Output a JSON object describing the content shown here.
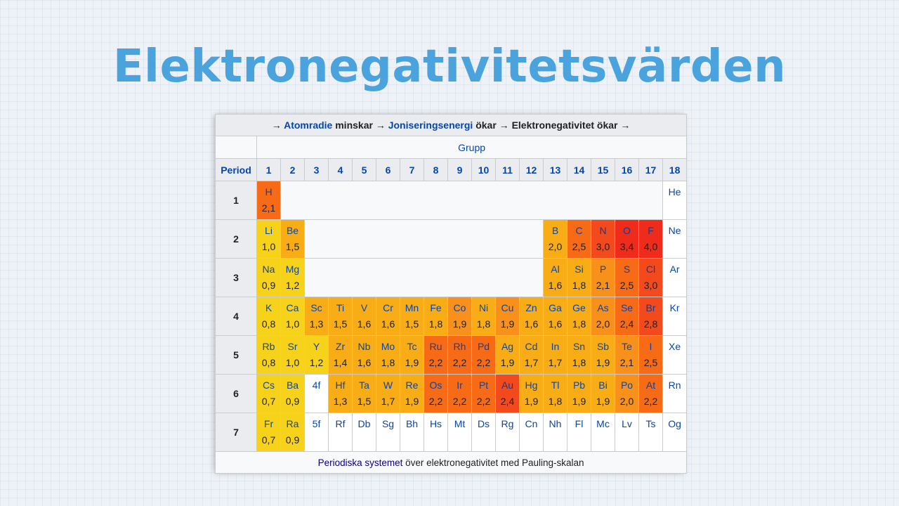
{
  "title": "Elektronegativitetsvärden",
  "header": {
    "arrow1": "→",
    "atomradie": "Atomradie",
    "minskar": "minskar",
    "arrow2": "→",
    "joniseringsenergi": "Joniseringsenergi",
    "okar1": "ökar",
    "arrow3": "→",
    "elektronegativitet": "Elektronegativitet ökar",
    "arrow4": "→"
  },
  "grupp_label": "Grupp",
  "period_label": "Period",
  "groups": [
    "1",
    "2",
    "3",
    "4",
    "5",
    "6",
    "7",
    "8",
    "9",
    "10",
    "11",
    "12",
    "13",
    "14",
    "15",
    "16",
    "17",
    "18"
  ],
  "periods": [
    "1",
    "2",
    "3",
    "4",
    "5",
    "6",
    "7"
  ],
  "colors": {
    "yellow": "#f7d21a",
    "amber": "#f8ad17",
    "orange": "#f8901c",
    "dark_orange": "#f76a16",
    "red_orange": "#f34a1d",
    "red": "#ef2b1c",
    "white": "#ffffff"
  },
  "elements": {
    "H": {
      "sym": "H",
      "en": "2,1"
    },
    "He": {
      "sym": "He"
    },
    "Li": {
      "sym": "Li",
      "en": "1,0"
    },
    "Be": {
      "sym": "Be",
      "en": "1,5"
    },
    "B": {
      "sym": "B",
      "en": "2,0"
    },
    "C": {
      "sym": "C",
      "en": "2,5"
    },
    "N": {
      "sym": "N",
      "en": "3,0"
    },
    "O": {
      "sym": "O",
      "en": "3,4"
    },
    "F": {
      "sym": "F",
      "en": "4,0"
    },
    "Ne": {
      "sym": "Ne"
    },
    "Na": {
      "sym": "Na",
      "en": "0,9"
    },
    "Mg": {
      "sym": "Mg",
      "en": "1,2"
    },
    "Al": {
      "sym": "Al",
      "en": "1,6"
    },
    "Si": {
      "sym": "Si",
      "en": "1,8"
    },
    "P": {
      "sym": "P",
      "en": "2,1"
    },
    "S": {
      "sym": "S",
      "en": "2,5"
    },
    "Cl": {
      "sym": "Cl",
      "en": "3,0"
    },
    "Ar": {
      "sym": "Ar"
    },
    "K": {
      "sym": "K",
      "en": "0,8"
    },
    "Ca": {
      "sym": "Ca",
      "en": "1,0"
    },
    "Sc": {
      "sym": "Sc",
      "en": "1,3"
    },
    "Ti": {
      "sym": "Ti",
      "en": "1,5"
    },
    "V": {
      "sym": "V",
      "en": "1,6"
    },
    "Cr": {
      "sym": "Cr",
      "en": "1,6"
    },
    "Mn": {
      "sym": "Mn",
      "en": "1,5"
    },
    "Fe": {
      "sym": "Fe",
      "en": "1,8"
    },
    "Co": {
      "sym": "Co",
      "en": "1,9"
    },
    "Ni": {
      "sym": "Ni",
      "en": "1,8"
    },
    "Cu": {
      "sym": "Cu",
      "en": "1,9"
    },
    "Zn": {
      "sym": "Zn",
      "en": "1,6"
    },
    "Ga": {
      "sym": "Ga",
      "en": "1,6"
    },
    "Ge": {
      "sym": "Ge",
      "en": "1,8"
    },
    "As": {
      "sym": "As",
      "en": "2,0"
    },
    "Se": {
      "sym": "Se",
      "en": "2,4"
    },
    "Br": {
      "sym": "Br",
      "en": "2,8"
    },
    "Kr": {
      "sym": "Kr"
    },
    "Rb": {
      "sym": "Rb",
      "en": "0,8"
    },
    "Sr": {
      "sym": "Sr",
      "en": "1,0"
    },
    "Y": {
      "sym": "Y",
      "en": "1,2"
    },
    "Zr": {
      "sym": "Zr",
      "en": "1,4"
    },
    "Nb": {
      "sym": "Nb",
      "en": "1,6"
    },
    "Mo": {
      "sym": "Mo",
      "en": "1,8"
    },
    "Tc": {
      "sym": "Tc",
      "en": "1,9"
    },
    "Ru": {
      "sym": "Ru",
      "en": "2,2"
    },
    "Rh": {
      "sym": "Rh",
      "en": "2,2"
    },
    "Pd": {
      "sym": "Pd",
      "en": "2,2"
    },
    "Ag": {
      "sym": "Ag",
      "en": "1,9"
    },
    "Cd": {
      "sym": "Cd",
      "en": "1,7"
    },
    "In": {
      "sym": "In",
      "en": "1,7"
    },
    "Sn": {
      "sym": "Sn",
      "en": "1,8"
    },
    "Sb": {
      "sym": "Sb",
      "en": "1,9"
    },
    "Te": {
      "sym": "Te",
      "en": "2,1"
    },
    "I": {
      "sym": "I",
      "en": "2,5"
    },
    "Xe": {
      "sym": "Xe"
    },
    "Cs": {
      "sym": "Cs",
      "en": "0,7"
    },
    "Ba": {
      "sym": "Ba",
      "en": "0,9"
    },
    "f4": {
      "sym": "4f"
    },
    "Hf": {
      "sym": "Hf",
      "en": "1,3"
    },
    "Ta": {
      "sym": "Ta",
      "en": "1,5"
    },
    "W": {
      "sym": "W",
      "en": "1,7"
    },
    "Re": {
      "sym": "Re",
      "en": "1,9"
    },
    "Os": {
      "sym": "Os",
      "en": "2,2"
    },
    "Ir": {
      "sym": "Ir",
      "en": "2,2"
    },
    "Pt": {
      "sym": "Pt",
      "en": "2,2"
    },
    "Au": {
      "sym": "Au",
      "en": "2,4"
    },
    "Hg": {
      "sym": "Hg",
      "en": "1,9"
    },
    "Tl": {
      "sym": "Tl",
      "en": "1,8"
    },
    "Pb": {
      "sym": "Pb",
      "en": "1,9"
    },
    "Bi": {
      "sym": "Bi",
      "en": "1,9"
    },
    "Po": {
      "sym": "Po",
      "en": "2,0"
    },
    "At": {
      "sym": "At",
      "en": "2,2"
    },
    "Rn": {
      "sym": "Rn"
    },
    "Fr": {
      "sym": "Fr",
      "en": "0,7"
    },
    "Ra": {
      "sym": "Ra",
      "en": "0,9"
    },
    "f5": {
      "sym": "5f"
    },
    "Rf": {
      "sym": "Rf"
    },
    "Db": {
      "sym": "Db"
    },
    "Sg": {
      "sym": "Sg"
    },
    "Bh": {
      "sym": "Bh"
    },
    "Hs": {
      "sym": "Hs"
    },
    "Mt": {
      "sym": "Mt"
    },
    "Ds": {
      "sym": "Ds"
    },
    "Rg": {
      "sym": "Rg"
    },
    "Cn": {
      "sym": "Cn"
    },
    "Nh": {
      "sym": "Nh"
    },
    "Fl": {
      "sym": "Fl"
    },
    "Mc": {
      "sym": "Mc"
    },
    "Lv": {
      "sym": "Lv"
    },
    "Ts": {
      "sym": "Ts"
    },
    "Og": {
      "sym": "Og"
    }
  },
  "caption": {
    "link": "Periodiska systemet",
    "rest": "över elektronegativitet med Pauling-skalan"
  }
}
